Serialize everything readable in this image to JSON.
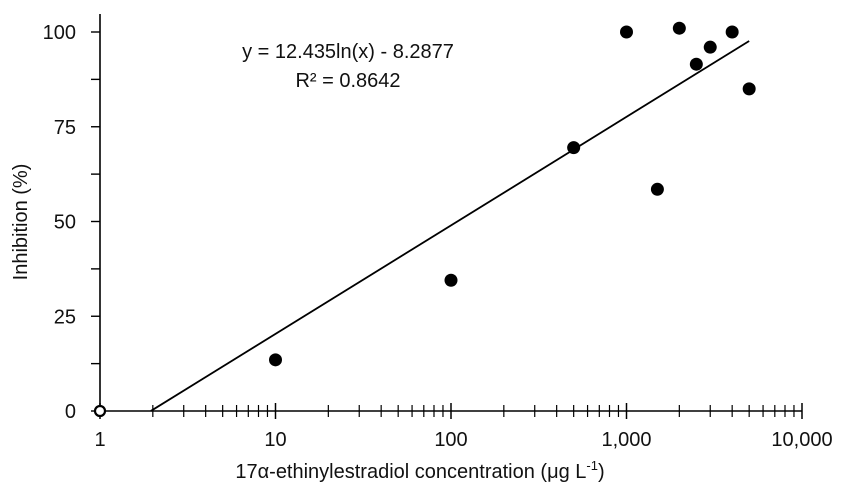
{
  "chart_data": {
    "type": "scatter",
    "title": "",
    "xlabel": {
      "prefix": "17α-ethinylestradiol concentration (μg L",
      "superscript": "-1",
      "suffix": ")"
    },
    "ylabel": "Inhibition (%)",
    "x_scale": "log",
    "xlim": [
      1,
      10000
    ],
    "ylim": [
      0,
      105
    ],
    "x_ticks": [
      1,
      10,
      100,
      1000,
      10000
    ],
    "x_tick_labels": [
      "1",
      "10",
      "100",
      "1,000",
      "10,000"
    ],
    "y_ticks": [
      0,
      25,
      50,
      75,
      100
    ],
    "y_tick_labels": [
      "0",
      "25",
      "50",
      "75",
      "100"
    ],
    "grid": false,
    "series": [
      {
        "x": [
          1,
          10,
          100,
          500,
          1000,
          1500,
          2000,
          2500,
          3000,
          4000,
          5000
        ],
        "y": [
          0,
          13.5,
          34.5,
          69.5,
          100,
          58.5,
          101,
          91.5,
          96,
          100,
          85
        ]
      }
    ],
    "trendline": {
      "type": "logarithmic",
      "a": 12.435,
      "b": -8.2877,
      "x_range": [
        1.95,
        5000
      ],
      "equation_label": "y = 12.435ln(x) - 8.2877",
      "r2_label": "R² = 0.8642"
    }
  }
}
